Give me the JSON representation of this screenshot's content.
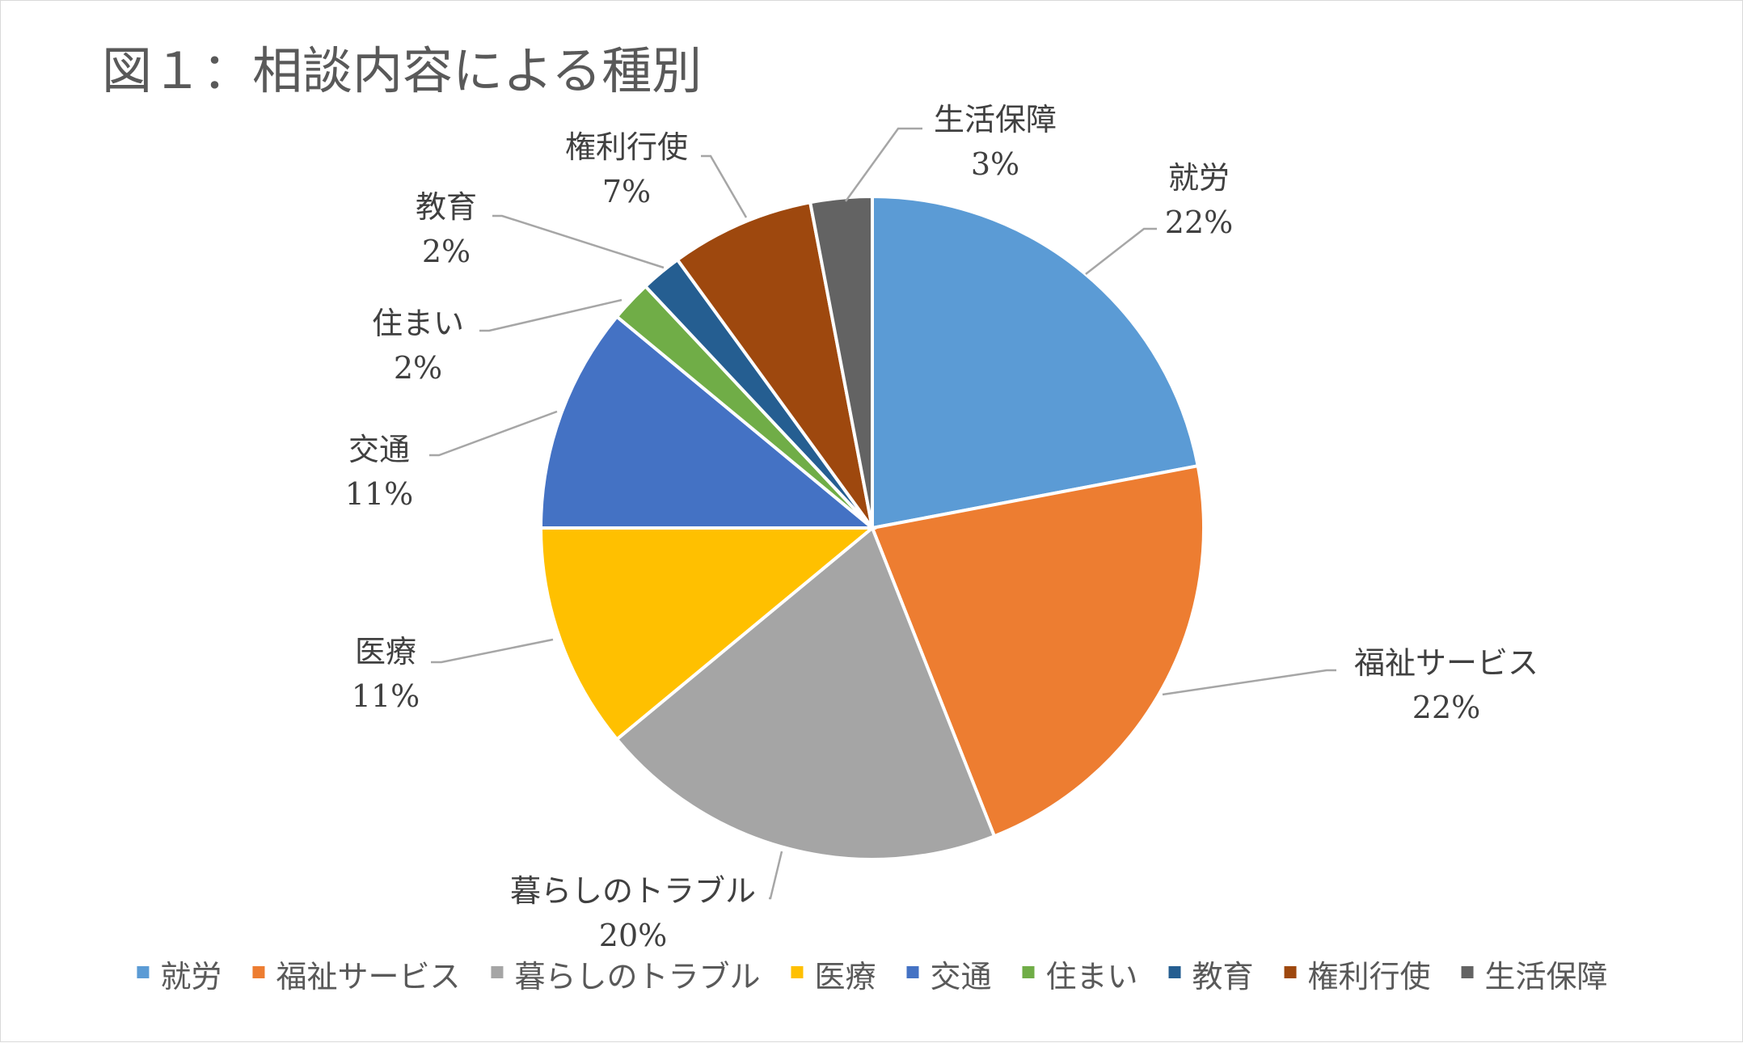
{
  "chart_data": {
    "type": "pie",
    "title": "図１：相談内容による種別",
    "categories": [
      "就労",
      "福祉サービス",
      "暮らしのトラブル",
      "医療",
      "交通",
      "住まい",
      "教育",
      "権利行使",
      "生活保障"
    ],
    "values": [
      22,
      22,
      20,
      11,
      11,
      2,
      2,
      7,
      3
    ],
    "labels": [
      "22%",
      "22%",
      "20%",
      "11%",
      "11%",
      "2%",
      "2%",
      "7%",
      "3%"
    ],
    "colors": [
      "#5b9bd5",
      "#ed7d31",
      "#a5a5a5",
      "#ffc000",
      "#4472c4",
      "#70ad47",
      "#255e91",
      "#9e480e",
      "#636363"
    ],
    "legend_position": "bottom",
    "start_angle_deg": 0,
    "direction": "clockwise"
  }
}
